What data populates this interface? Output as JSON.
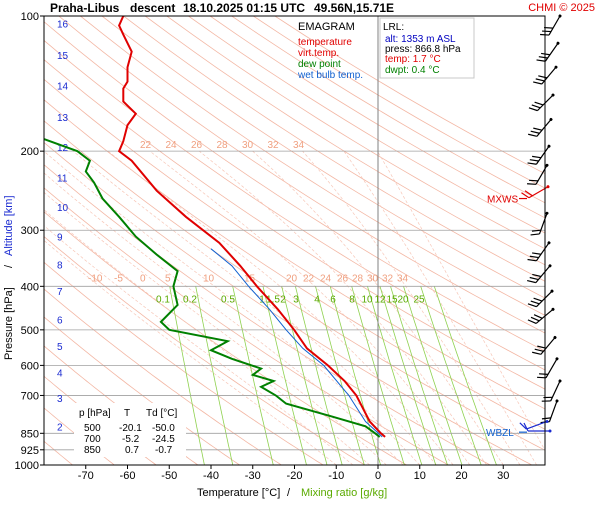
{
  "header": {
    "station": "Praha-Libus",
    "phase": "descent",
    "datetime": "18.10.2025 01:15 UTC",
    "coords": "49.56N,15.71E",
    "copyright": "CHMI © 2025"
  },
  "legend": {
    "title": "EMAGRAM",
    "items": [
      {
        "label": "temperature",
        "color": "#e00000"
      },
      {
        "label": "virt.temp.",
        "color": "#e00000"
      },
      {
        "label": "dew point",
        "color": "#008000"
      },
      {
        "label": "wet bulb temp.",
        "color": "#1060d0"
      }
    ]
  },
  "lrl": {
    "title": "LRL:",
    "rows": [
      {
        "text": "alt: 1353 m ASL",
        "color": "#0000c0"
      },
      {
        "text": "press: 866.8 hPa",
        "color": "#000000"
      },
      {
        "text": "temp: 1.7 °C",
        "color": "#e00000"
      },
      {
        "text": "dwpt: 0.4 °C",
        "color": "#008000"
      }
    ]
  },
  "table": {
    "headers": [
      "p [hPa]",
      "T",
      "Td [°C]"
    ],
    "rows": [
      [
        "500",
        "-20.1",
        "-50.0"
      ],
      [
        "700",
        "-5.2",
        "-24.5"
      ],
      [
        "850",
        "0.7",
        "-0.7"
      ]
    ]
  },
  "chart_data": {
    "type": "line",
    "xlabel": "Temperature [°C]",
    "xlabel_sep": "/",
    "xlabel2": "Mixing ratio [g/kg]",
    "ylabel": "Pressure [hPa]",
    "ylabel_sep": "/",
    "ylabel2": "Altitude [km]",
    "xlim": [
      -80,
      40
    ],
    "ylim": [
      1000,
      100
    ],
    "y_scale": "log",
    "x_ticks": [
      -70,
      -60,
      -50,
      -40,
      -30,
      -20,
      -10,
      0,
      10,
      20,
      30
    ],
    "y_ticks": [
      100,
      200,
      300,
      400,
      500,
      600,
      700,
      850,
      925,
      1000
    ],
    "altitude_ticks": [
      {
        "label": "2",
        "p": 820
      },
      {
        "label": "3",
        "p": 710
      },
      {
        "label": "4",
        "p": 622
      },
      {
        "label": "5",
        "p": 543
      },
      {
        "label": "6",
        "p": 474
      },
      {
        "label": "7",
        "p": 410
      },
      {
        "label": "8",
        "p": 358
      },
      {
        "label": "9",
        "p": 310
      },
      {
        "label": "10",
        "p": 266
      },
      {
        "label": "11",
        "p": 229
      },
      {
        "label": "12",
        "p": 196
      },
      {
        "label": "13",
        "p": 168
      },
      {
        "label": "14",
        "p": 143
      },
      {
        "label": "15",
        "p": 122
      },
      {
        "label": "16",
        "p": 104
      }
    ],
    "isotherm_labels_200": [
      "22",
      "24",
      "26",
      "28",
      "30",
      "32",
      "34"
    ],
    "isotherm_labels_400": [
      "-10",
      "-5",
      "0",
      "5",
      "10",
      "15",
      "20",
      "22",
      "24",
      "26",
      "28",
      "30",
      "32",
      "34"
    ],
    "mixing_ratio_labels": [
      "0.1",
      "0.2",
      "0.5",
      "1",
      "1.5",
      "2",
      "3",
      "4",
      "6",
      "8",
      "10",
      "12",
      "15",
      "20",
      "25"
    ],
    "markers": [
      {
        "label": "MXWS",
        "p": 255,
        "color": "#e00000"
      },
      {
        "label": "WBZL",
        "p": 845,
        "color": "#1060d0"
      }
    ],
    "series": [
      {
        "name": "temperature",
        "color": "#e00000",
        "points": [
          [
            1.7,
            866
          ],
          [
            0.7,
            850
          ],
          [
            -2,
            800
          ],
          [
            -5.2,
            700
          ],
          [
            -8,
            650
          ],
          [
            -12,
            600
          ],
          [
            -17,
            550
          ],
          [
            -20.1,
            500
          ],
          [
            -24,
            450
          ],
          [
            -29,
            400
          ],
          [
            -33,
            360
          ],
          [
            -38,
            320
          ],
          [
            -46,
            280
          ],
          [
            -53,
            245
          ],
          [
            -59,
            210
          ],
          [
            -62,
            200
          ],
          [
            -61,
            190
          ],
          [
            -60,
            175
          ],
          [
            -58,
            165
          ],
          [
            -61,
            155
          ],
          [
            -61,
            145
          ],
          [
            -60,
            140
          ],
          [
            -60,
            130
          ],
          [
            -59,
            120
          ],
          [
            -61,
            110
          ],
          [
            -62,
            105
          ],
          [
            -61,
            100
          ]
        ]
      },
      {
        "name": "dew point",
        "color": "#008000",
        "points": [
          [
            0.4,
            866
          ],
          [
            -0.7,
            850
          ],
          [
            -3,
            820
          ],
          [
            -11,
            780
          ],
          [
            -22,
            730
          ],
          [
            -24.5,
            700
          ],
          [
            -28,
            670
          ],
          [
            -25,
            650
          ],
          [
            -30,
            630
          ],
          [
            -28,
            610
          ],
          [
            -35,
            580
          ],
          [
            -40,
            555
          ],
          [
            -36,
            530
          ],
          [
            -50,
            500
          ],
          [
            -52,
            480
          ],
          [
            -48,
            440
          ],
          [
            -49,
            400
          ],
          [
            -48,
            370
          ],
          [
            -53,
            340
          ],
          [
            -58,
            310
          ],
          [
            -62,
            280
          ],
          [
            -66,
            255
          ],
          [
            -68,
            235
          ],
          [
            -70,
            222
          ],
          [
            -69,
            210
          ],
          [
            -72,
            200
          ],
          [
            -80,
            188
          ]
        ]
      },
      {
        "name": "wet bulb temp.",
        "color": "#1060d0",
        "points": [
          [
            1.0,
            866
          ],
          [
            0.1,
            850
          ],
          [
            -3,
            800
          ],
          [
            -7,
            700
          ],
          [
            -13,
            600
          ],
          [
            -18,
            550
          ],
          [
            -22,
            500
          ],
          [
            -26,
            450
          ],
          [
            -31,
            400
          ],
          [
            -35,
            360
          ],
          [
            -40,
            330
          ]
        ]
      }
    ]
  }
}
